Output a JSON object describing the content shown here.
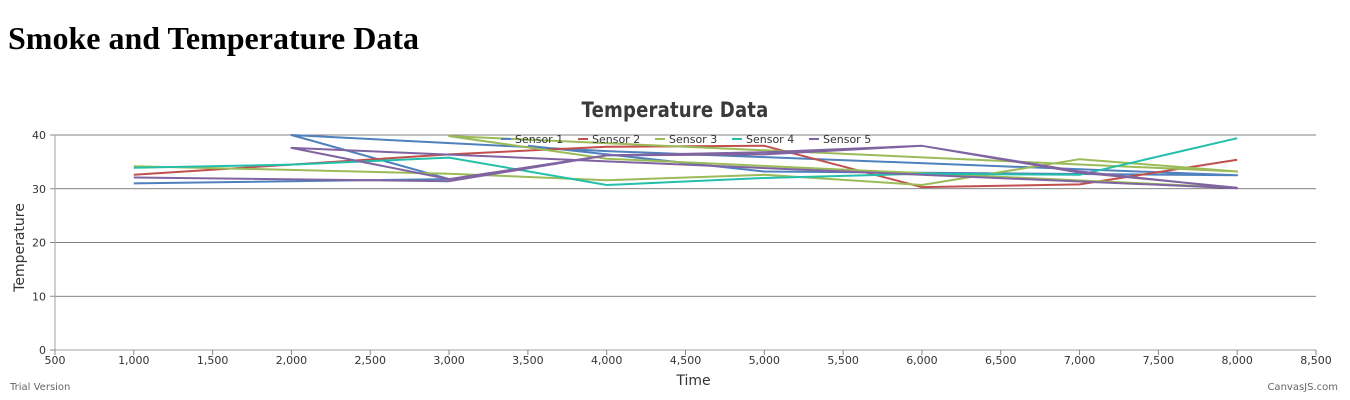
{
  "page": {
    "heading": "Smoke and Temperature Data"
  },
  "footer": {
    "trial": "Trial Version",
    "credit": "CanvasJS.com"
  },
  "chart_data": {
    "type": "line",
    "title": "Temperature Data",
    "xlabel": "Time",
    "ylabel": "Temperature",
    "xlim": [
      500,
      8500
    ],
    "ylim": [
      0,
      40
    ],
    "xticks": [
      500,
      1000,
      1500,
      2000,
      2500,
      3000,
      3500,
      4000,
      4500,
      5000,
      5500,
      6000,
      6500,
      7000,
      7500,
      8000,
      8500
    ],
    "xtick_labels": [
      "500",
      "1,000",
      "1,500",
      "2,000",
      "2,500",
      "3,000",
      "3,500",
      "4,000",
      "4,500",
      "5,000",
      "5,500",
      "6,000",
      "6,500",
      "7,000",
      "7,500",
      "8,000",
      "8,500"
    ],
    "yticks": [
      0,
      10,
      20,
      30,
      40
    ],
    "ytick_labels": [
      "0",
      "10",
      "20",
      "30",
      "40"
    ],
    "grid": "horizontal",
    "legend_position": "top-center",
    "series": [
      {
        "name": "Sensor 1",
        "color": "#4f81bc",
        "x": [
          1000,
          3000,
          2000,
          4000,
          8000,
          5000,
          3500
        ],
        "y": [
          31.0,
          31.8,
          40.0,
          37.0,
          32.5,
          33.2,
          38.0
        ]
      },
      {
        "name": "Sensor 2",
        "color": "#c0504e",
        "x": [
          1000,
          3000,
          4000,
          5000,
          6000,
          7000,
          8000
        ],
        "y": [
          32.6,
          36.4,
          37.8,
          38.0,
          30.3,
          30.8,
          35.4
        ]
      },
      {
        "name": "Sensor 3",
        "color": "#9bbb58",
        "x": [
          1000,
          3000,
          4000,
          5000,
          6000,
          7000,
          8000,
          3000,
          4000,
          8000
        ],
        "y": [
          34.2,
          32.8,
          31.6,
          32.6,
          30.7,
          35.5,
          33.2,
          39.8,
          35.6,
          30.2
        ]
      },
      {
        "name": "Sensor 4",
        "color": "#23bfaa",
        "x": [
          1000,
          2000,
          3000,
          4000,
          5000,
          6000,
          7000,
          8000
        ],
        "y": [
          33.9,
          34.5,
          35.8,
          30.7,
          32.0,
          32.8,
          32.6,
          39.4
        ]
      },
      {
        "name": "Sensor 5",
        "color": "#8064a1",
        "x": [
          1000,
          3000,
          4000,
          5000,
          6000,
          7000,
          8000,
          2000,
          3000,
          4000,
          5000,
          6000,
          7000,
          8000
        ],
        "y": [
          32.1,
          31.4,
          36.2,
          36.8,
          38.0,
          33.2,
          30.1,
          37.6,
          31.8,
          36.2,
          36.4,
          38.0,
          33.0,
          30.2
        ]
      }
    ]
  }
}
